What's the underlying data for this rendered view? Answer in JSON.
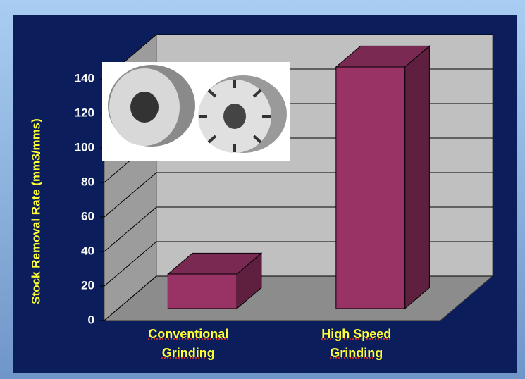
{
  "chart_data": {
    "type": "bar",
    "y_label": "Stock Removal Rate (mm3/mms)",
    "categories": [
      "Conventional Grinding",
      "High Speed Grinding"
    ],
    "values": [
      20,
      140
    ],
    "color": "#993366",
    "ylim": [
      0,
      140
    ],
    "yticks": [
      0,
      20,
      40,
      60,
      80,
      100,
      120,
      140
    ],
    "grid": true
  }
}
